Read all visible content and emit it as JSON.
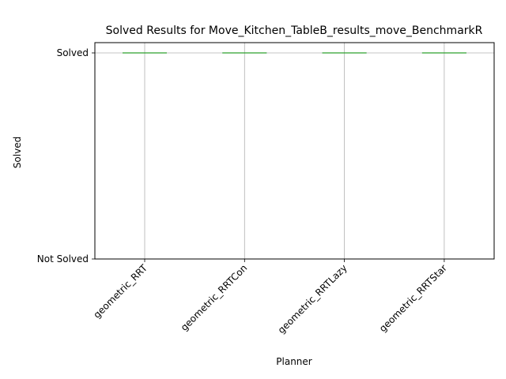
{
  "chart_data": {
    "type": "box",
    "title": "Solved Results for Move_Kitchen_TableB_results_move_BenchmarkR",
    "xlabel": "Planner",
    "ylabel": "Solved",
    "categories": [
      "geometric_RRT",
      "geometric_RRTCon",
      "geometric_RRTLazy",
      "geometric_RRTStar"
    ],
    "values": [
      1,
      1,
      1,
      1
    ],
    "ylim": [
      0,
      1
    ],
    "y_ticks": [
      {
        "value": 0,
        "label": "Not Solved"
      },
      {
        "value": 1,
        "label": "Solved"
      }
    ],
    "grid": true,
    "x_tick_rotation_deg": 45,
    "colors": {
      "median": "#2ca02c",
      "box": "#1f77b4",
      "grid": "#b0b0b0",
      "axes": "#000000"
    }
  }
}
